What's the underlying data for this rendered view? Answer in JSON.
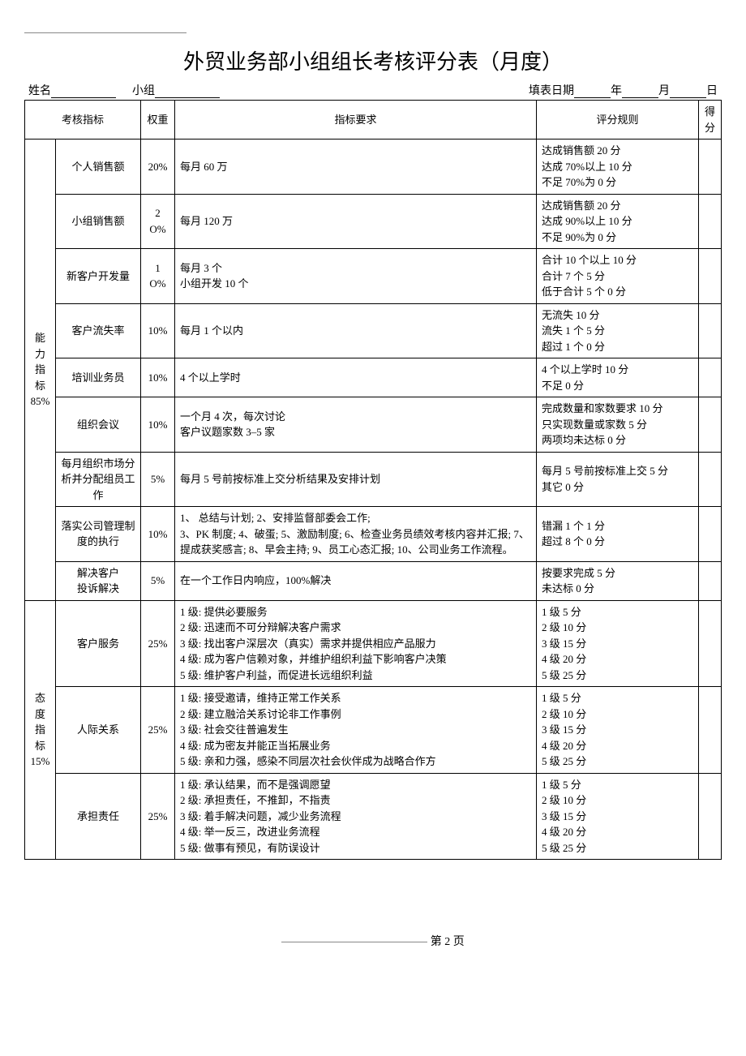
{
  "title": "外贸业务部小组组长考核评分表（月度）",
  "header": {
    "name_label": "姓名",
    "group_label": "小组",
    "date_label": "填表日期",
    "year": "年",
    "month": "月",
    "day": "日"
  },
  "columns": {
    "indicator": "考核指标",
    "weight": "权重",
    "requirement": "指标要求",
    "rule": "评分规则",
    "score": "得分"
  },
  "categories": [
    {
      "name": "能力指标",
      "pct": "85%",
      "rows": [
        {
          "idx": "个人销售额",
          "wt": "20%",
          "req": "每月 60 万",
          "rule": "达成销售额 20 分\n达成 70%以上 10 分\n不足 70%为 0 分"
        },
        {
          "idx": "小组销售额",
          "wt": "2 O%",
          "req": "每月 120 万",
          "rule": "达成销售额 20 分\n达成 90%以上 10 分\n不足 90%为 0 分"
        },
        {
          "idx": "新客户开发量",
          "wt": "1 O%",
          "req": "每月 3 个\n小组开发 10 个",
          "rule": "合计 10 个以上 10 分\n合计 7 个 5 分\n低于合计 5 个 0 分"
        },
        {
          "idx": "客户流失率",
          "wt": "10%",
          "req": "每月 1 个以内",
          "rule": "无流失 10 分\n流失 1 个 5 分\n超过 1 个 0 分"
        },
        {
          "idx": "培训业务员",
          "wt": "10%",
          "req": "4 个以上学时",
          "rule": "4 个以上学时 10 分\n不足 0 分"
        },
        {
          "idx": "组织会议",
          "wt": "10%",
          "req": "一个月 4 次，每次讨论\n客户议题家数 3–5 家",
          "rule": "完成数量和家数要求 10 分\n只实现数量或家数 5 分\n两项均未达标 0 分"
        },
        {
          "idx": "每月组织市场分析并分配组员工作",
          "wt": "5%",
          "req": "每月 5 号前按标准上交分析结果及安排计划",
          "rule": "每月 5 号前按标准上交 5 分\n其它 0 分"
        },
        {
          "idx": "落实公司管理制度的执行",
          "wt": "10%",
          "req": "1、 总结与计划; 2、安排监督部委会工作;\n3、PK 制度; 4、破蛋; 5、激励制度; 6、检查业务员绩效考核内容并汇报; 7、提成获奖感言; 8、早会主持; 9、员工心态汇报; 10、公司业务工作流程。",
          "rule": "错漏 1 个 1 分\n超过 8 个 0 分"
        },
        {
          "idx": "解决客户\n投诉解决",
          "wt": "5%",
          "req": "在一个工作日内响应，100%解决",
          "rule": "按要求完成 5 分\n未达标 0 分"
        }
      ]
    },
    {
      "name": "态度指标",
      "pct": "15%",
      "rows": [
        {
          "idx": "客户服务",
          "wt": "25%",
          "req": "1 级: 提供必要服务\n2 级: 迅速而不可分辩解决客户需求\n3 级: 找出客户深层次（真实）需求并提供相应产品服力\n4 级: 成为客户信赖对象，并维护组织利益下影响客户决策\n5 级: 维护客户利益，而促进长远组织利益",
          "rule": "1 级 5 分\n2 级 10 分\n3 级 15 分\n4 级 20 分\n5 级 25 分"
        },
        {
          "idx": "人际关系",
          "wt": "25%",
          "req": "1 级: 接受邀请，维持正常工作关系\n2 级: 建立融洽关系讨论非工作事例\n3 级: 社会交往普遍发生\n4 级: 成为密友并能正当拓展业务\n5 级: 亲和力强，感染不同层次社会伙伴成为战略合作方",
          "rule": "1 级 5 分\n2 级 10 分\n3 级 15 分\n4 级 20 分\n5 级 25 分"
        },
        {
          "idx": "承担责任",
          "wt": "25%",
          "req": "1 级: 承认结果，而不是强调愿望\n2 级: 承担责任，不推卸，不指责\n3 级: 着手解决问题，减少业务流程\n4 级: 举一反三，改进业务流程\n5 级: 做事有预见，有防误设计",
          "rule": "1 级 5 分\n2 级 10 分\n3 级 15 分\n4 级 20 分\n5 级 25 分"
        }
      ]
    }
  ],
  "footer": {
    "page_prefix": "第",
    "page_num": "2",
    "page_suffix": "页"
  }
}
